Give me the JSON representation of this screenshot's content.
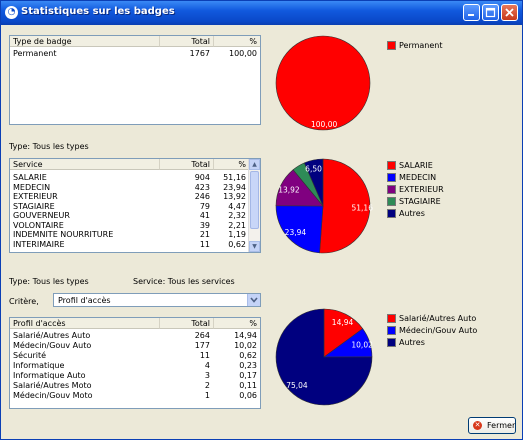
{
  "window": {
    "title": "Statistiques sur les badges",
    "icon": "app-icon"
  },
  "section1": {
    "headers": [
      "Type de badge",
      "Total",
      "%"
    ],
    "rows": [
      [
        "Permanent",
        "1767",
        "100,00"
      ]
    ]
  },
  "section2": {
    "caption": "Type: Tous les types",
    "headers": [
      "Service",
      "Total",
      "%"
    ],
    "rows": [
      [
        "SALARIE",
        "904",
        "51,16"
      ],
      [
        "MEDECIN",
        "423",
        "23,94"
      ],
      [
        "EXTERIEUR",
        "246",
        "13,92"
      ],
      [
        "STAGIAIRE",
        "79",
        "4,47"
      ],
      [
        "GOUVERNEUR",
        "41",
        "2,32"
      ],
      [
        "VOLONTAIRE",
        "39",
        "2,21"
      ],
      [
        "INDEMNITE NOURRITURE",
        "21",
        "1,19"
      ],
      [
        "INTERIMAIRE",
        "11",
        "0,62"
      ]
    ]
  },
  "section3": {
    "caption_type": "Type: Tous les types",
    "caption_service": "Service: Tous les services",
    "critere_label": "Critère,",
    "critere_value": "Profil d'accès",
    "headers": [
      "Profil d'accès",
      "Total",
      "%"
    ],
    "rows": [
      [
        "Salarié/Autres Auto",
        "264",
        "14,94"
      ],
      [
        "Médecin/Gouv Auto",
        "177",
        "10,02"
      ],
      [
        "Sécurité",
        "11",
        "0,62"
      ],
      [
        "Informatique",
        "4",
        "0,23"
      ],
      [
        "Informatique Auto",
        "3",
        "0,17"
      ],
      [
        "Salarié/Autres Moto",
        "2",
        "0,11"
      ],
      [
        "Médecin/Gouv Moto",
        "1",
        "0,06"
      ]
    ]
  },
  "buttons": {
    "close_label": "Fermer"
  },
  "chart_data": [
    {
      "type": "pie",
      "slices": [
        {
          "name": "Permanent",
          "value": 100.0,
          "label": "100,00",
          "color": "#ff0000"
        }
      ],
      "legend": [
        "Permanent"
      ],
      "legend_placement": "right"
    },
    {
      "type": "pie",
      "slices": [
        {
          "name": "SALARIE",
          "value": 51.16,
          "label": "51,16",
          "color": "#ff0000"
        },
        {
          "name": "MEDECIN",
          "value": 23.94,
          "label": "23,94",
          "color": "#0000ff"
        },
        {
          "name": "EXTERIEUR",
          "value": 13.92,
          "label": "13,92",
          "color": "#800080"
        },
        {
          "name": "STAGIAIRE",
          "value": 4.47,
          "label": "",
          "color": "#2e8b57"
        },
        {
          "name": "Autres",
          "value": 6.5,
          "label": "6,50",
          "color": "#00007f"
        }
      ],
      "legend": [
        "SALARIE",
        "MEDECIN",
        "EXTERIEUR",
        "STAGIAIRE",
        "Autres"
      ],
      "legend_placement": "right"
    },
    {
      "type": "pie",
      "slices": [
        {
          "name": "Salarié/Autres Auto",
          "value": 14.94,
          "label": "14,94",
          "color": "#ff0000"
        },
        {
          "name": "Médecin/Gouv Auto",
          "value": 10.02,
          "label": "10,02",
          "color": "#0000ff"
        },
        {
          "name": "Autres",
          "value": 75.04,
          "label": "75,04",
          "color": "#00007f"
        }
      ],
      "legend": [
        "Salarié/Autres Auto",
        "Médecin/Gouv Auto",
        "Autres"
      ],
      "legend_placement": "right"
    }
  ]
}
